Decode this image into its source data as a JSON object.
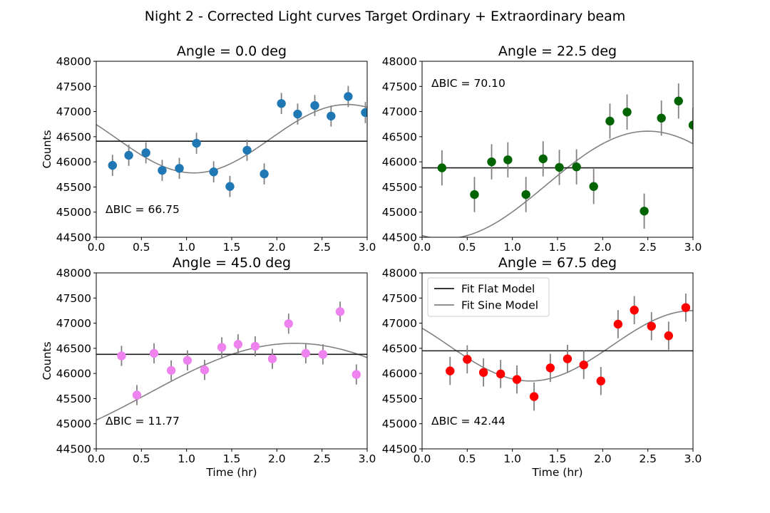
{
  "figure": {
    "title": "Night 2 - Corrected Light curves Target Ordinary + Extraordinary beam",
    "legend": {
      "entries": [
        "Fit Flat Model",
        "Fit Sine Model"
      ],
      "placement": "upper-left of bottom-right panel"
    }
  },
  "colors": {
    "flat_line": "#1a1a1a",
    "sine_line": "#808080",
    "errorbar": "#808080"
  },
  "chart_data": [
    {
      "type": "scatter",
      "title": "Angle = 0.0 deg",
      "xlabel": "",
      "ylabel": "Counts",
      "xlim": [
        0.0,
        3.0
      ],
      "ylim": [
        44500,
        48000
      ],
      "xticks": [
        "0.0",
        "0.5",
        "1.0",
        "1.5",
        "2.0",
        "2.5",
        "3.0"
      ],
      "yticks": [
        "44500",
        "45000",
        "45500",
        "46000",
        "46500",
        "47000",
        "47500",
        "48000"
      ],
      "annotation": "ΔBIC = 66.75",
      "color": "#1f77b4",
      "x": [
        0.18,
        0.36,
        0.55,
        0.73,
        0.92,
        1.11,
        1.3,
        1.48,
        1.67,
        1.86,
        2.05,
        2.23,
        2.42,
        2.6,
        2.79,
        2.98
      ],
      "y": [
        45930,
        46130,
        46180,
        45830,
        45870,
        46370,
        45800,
        45510,
        46230,
        45760,
        47160,
        46950,
        47120,
        46910,
        47300,
        46980
      ],
      "yerr": [
        210,
        210,
        210,
        210,
        210,
        210,
        210,
        210,
        210,
        210,
        210,
        210,
        210,
        210,
        210,
        210
      ],
      "flat": 46410,
      "sine": {
        "offset": 46460,
        "amp": 680,
        "period": 3.4,
        "t_peak": 2.78
      }
    },
    {
      "type": "scatter",
      "title": "Angle = 22.5 deg",
      "xlabel": "",
      "ylabel": "",
      "xlim": [
        0.0,
        3.0
      ],
      "ylim": [
        44500,
        48000
      ],
      "xticks": [
        "0.0",
        "0.5",
        "1.0",
        "1.5",
        "2.0",
        "2.5",
        "3.0"
      ],
      "yticks": [
        "44500",
        "45000",
        "45500",
        "46000",
        "46500",
        "47000",
        "47500",
        "48000"
      ],
      "annotation": "ΔBIC = 70.10",
      "color": "#006400",
      "x": [
        0.22,
        0.58,
        0.77,
        0.95,
        1.15,
        1.34,
        1.52,
        1.71,
        1.9,
        2.08,
        2.27,
        2.46,
        2.65,
        2.84,
        3.0
      ],
      "y": [
        45880,
        45350,
        46000,
        46040,
        45350,
        46060,
        45890,
        45900,
        45510,
        46810,
        46990,
        45020,
        46870,
        47210,
        46730
      ],
      "yerr": [
        350,
        350,
        350,
        350,
        350,
        350,
        350,
        350,
        350,
        350,
        350,
        350,
        350,
        350,
        350
      ],
      "flat": 45880,
      "sine": {
        "offset": 45540,
        "amp": 1070,
        "period": 4.5,
        "t_peak": 2.5
      }
    },
    {
      "type": "scatter",
      "title": "Angle = 45.0 deg",
      "xlabel": "Time (hr)",
      "ylabel": "Counts",
      "xlim": [
        0.0,
        3.0
      ],
      "ylim": [
        44500,
        48000
      ],
      "xticks": [
        "0.0",
        "0.5",
        "1.0",
        "1.5",
        "2.0",
        "2.5",
        "3.0"
      ],
      "yticks": [
        "44500",
        "45000",
        "45500",
        "46000",
        "46500",
        "47000",
        "47500",
        "48000"
      ],
      "annotation": "ΔBIC = 11.77",
      "color": "#ee82ee",
      "x": [
        0.28,
        0.45,
        0.64,
        0.83,
        1.01,
        1.2,
        1.39,
        1.57,
        1.76,
        1.95,
        2.13,
        2.32,
        2.51,
        2.7,
        2.88
      ],
      "y": [
        46350,
        45570,
        46400,
        46060,
        46260,
        46070,
        46520,
        46580,
        46540,
        46290,
        46990,
        46400,
        46380,
        47230,
        45980
      ],
      "yerr": [
        200,
        200,
        200,
        200,
        200,
        200,
        200,
        200,
        200,
        200,
        200,
        200,
        200,
        200,
        200
      ],
      "flat": 46380,
      "sine": {
        "offset": 45600,
        "amp": 1000,
        "period": 6.5,
        "t_peak": 2.2
      }
    },
    {
      "type": "scatter",
      "title": "Angle = 67.5 deg",
      "xlabel": "Time (hr)",
      "ylabel": "",
      "xlim": [
        0.0,
        3.0
      ],
      "ylim": [
        44500,
        48000
      ],
      "xticks": [
        "0.0",
        "0.5",
        "1.0",
        "1.5",
        "2.0",
        "2.5",
        "3.0"
      ],
      "yticks": [
        "44500",
        "45000",
        "45500",
        "46000",
        "46500",
        "47000",
        "47500",
        "48000"
      ],
      "annotation": "ΔBIC = 42.44",
      "color": "#ff0000",
      "x": [
        0.31,
        0.5,
        0.68,
        0.87,
        1.05,
        1.24,
        1.42,
        1.61,
        1.79,
        1.98,
        2.17,
        2.35,
        2.54,
        2.73,
        2.92
      ],
      "y": [
        46050,
        46280,
        46020,
        45990,
        45880,
        45540,
        46110,
        46290,
        46170,
        45850,
        46980,
        47260,
        46940,
        46750,
        47310
      ],
      "yerr": [
        280,
        280,
        280,
        280,
        280,
        280,
        280,
        280,
        280,
        280,
        280,
        280,
        280,
        280,
        280
      ],
      "flat": 46450,
      "sine": {
        "offset": 46550,
        "amp": 700,
        "period": 3.6,
        "t_peak": 3.0
      }
    }
  ]
}
